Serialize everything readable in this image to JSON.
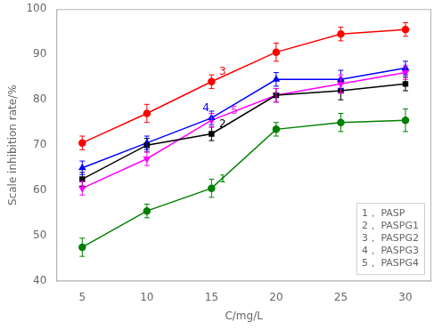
{
  "chart_data": {
    "type": "line",
    "x": [
      5,
      10,
      15,
      20,
      25,
      30
    ],
    "series": [
      {
        "name": "1， PASP",
        "color": "green",
        "marker": "circle",
        "values": [
          47.5,
          55.5,
          60.5,
          73.5,
          75.0,
          75.5
        ],
        "errors": [
          2.0,
          1.5,
          2.0,
          1.5,
          2.0,
          2.5
        ]
      },
      {
        "name": "2， PASPG1",
        "color": "black",
        "marker": "square",
        "values": [
          62.5,
          70.0,
          72.5,
          81.0,
          82.0,
          83.5
        ],
        "errors": [
          1.5,
          1.5,
          1.5,
          1.5,
          2.0,
          1.5
        ]
      },
      {
        "name": "3， PASPG2",
        "color": "red",
        "marker": "circle",
        "values": [
          70.5,
          77.0,
          84.0,
          90.5,
          94.5,
          95.5
        ],
        "errors": [
          1.5,
          2.0,
          1.5,
          2.0,
          1.5,
          1.5
        ]
      },
      {
        "name": "4， PASPG3",
        "color": "blue",
        "marker": "triangle-up",
        "values": [
          65.0,
          70.5,
          76.0,
          84.5,
          84.5,
          87.0
        ],
        "errors": [
          1.5,
          1.5,
          1.5,
          1.5,
          2.0,
          1.5
        ]
      },
      {
        "name": "5， PASPG4",
        "color": "magenta",
        "marker": "triangle-down",
        "values": [
          60.5,
          67.0,
          75.5,
          81.0,
          83.5,
          86.0
        ],
        "errors": [
          1.5,
          1.5,
          1.5,
          1.5,
          2.0,
          1.5
        ]
      }
    ],
    "annotations": [
      {
        "text": "3",
        "x": 15.6,
        "y": 86.2,
        "color": "red"
      },
      {
        "text": "4",
        "x": 14.3,
        "y": 78.2,
        "color": "blue"
      },
      {
        "text": "5",
        "x": 16.5,
        "y": 77.5,
        "color": "magenta"
      },
      {
        "text": "2",
        "x": 15.6,
        "y": 74.5,
        "color": "black"
      },
      {
        "text": "1",
        "x": 15.6,
        "y": 62.5,
        "color": "green"
      }
    ],
    "xlabel": "C/mg/L",
    "ylabel": "Scale inhibition rate/%",
    "xlim": [
      3,
      32
    ],
    "ylim": [
      40,
      100
    ],
    "xticks": [
      5,
      10,
      15,
      20,
      25,
      30
    ],
    "yticks": [
      40,
      50,
      60,
      70,
      80,
      90,
      100
    ],
    "grid": false,
    "legend": "lower right"
  }
}
